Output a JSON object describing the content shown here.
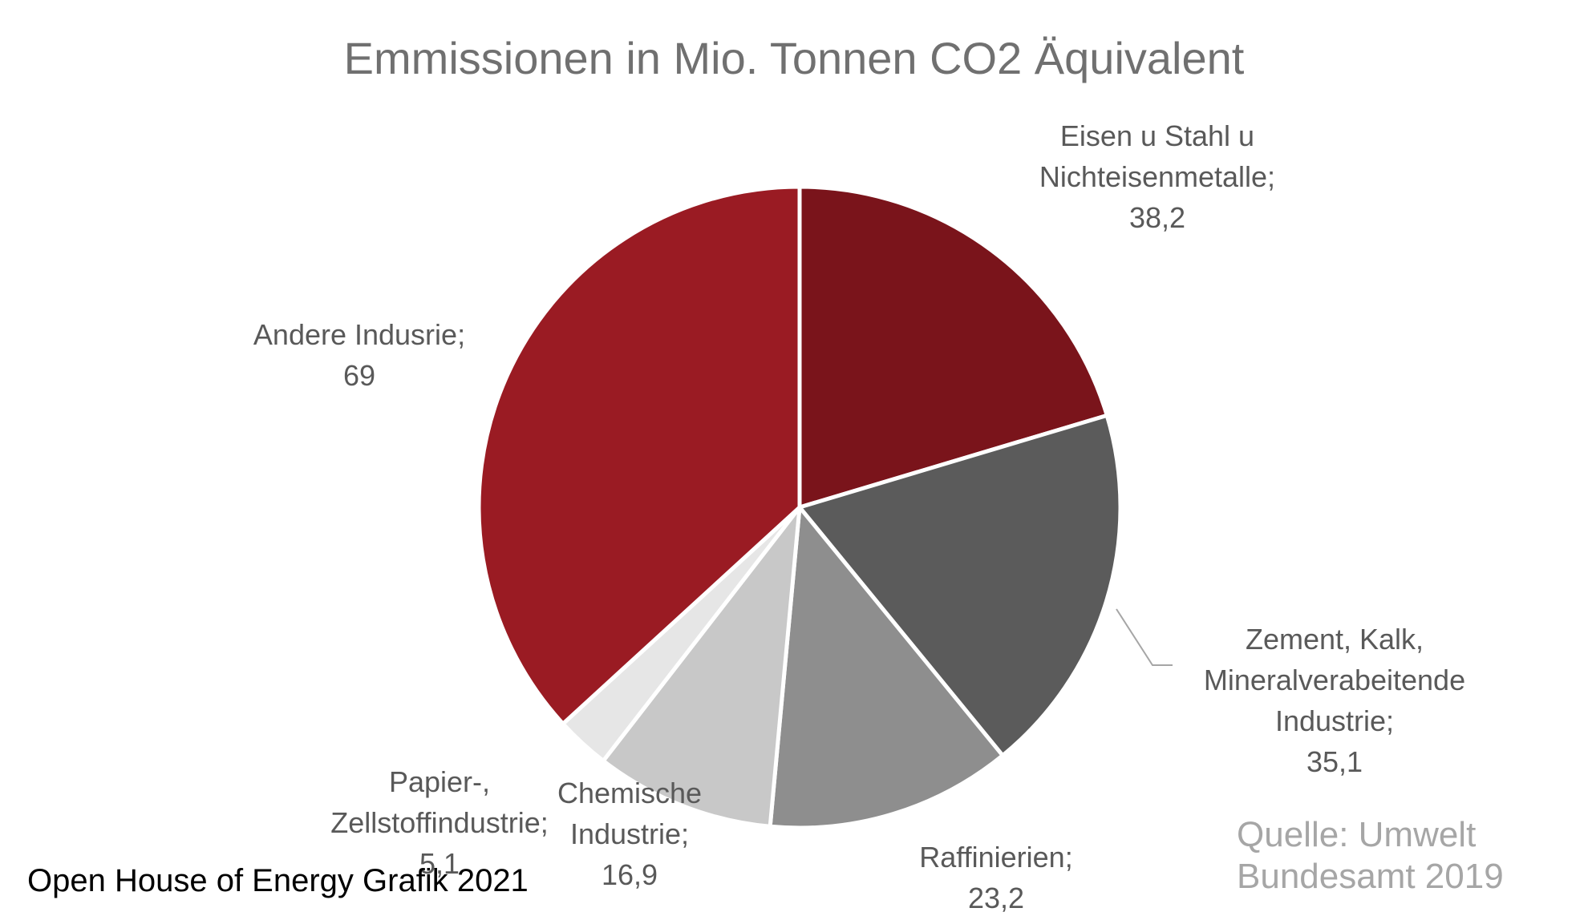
{
  "chart_data": {
    "type": "pie",
    "title": "Emmissionen in Mio. Tonnen CO2 Äquivalent",
    "slices": [
      {
        "label_lines": [
          "Eisen u Stahl u",
          "Nichteisenmetalle;"
        ],
        "value": 38.2,
        "value_text": "38,2",
        "color": "#7a141b"
      },
      {
        "label_lines": [
          "Zement, Kalk,",
          "Mineralverabeitende",
          "Industrie;"
        ],
        "value": 35.1,
        "value_text": "35,1",
        "color": "#5b5b5b"
      },
      {
        "label_lines": [
          "Raffinierien;"
        ],
        "value": 23.2,
        "value_text": "23,2",
        "color": "#8e8e8e"
      },
      {
        "label_lines": [
          "Chemische",
          "Industrie;"
        ],
        "value": 16.9,
        "value_text": "16,9",
        "color": "#c8c8c8"
      },
      {
        "label_lines": [
          "Papier-,",
          "Zellstoffindustrie;"
        ],
        "value": 5.1,
        "value_text": "5,1",
        "color": "#e6e6e6"
      },
      {
        "label_lines": [
          "Andere Indusrie;"
        ],
        "value": 69,
        "value_text": "69",
        "color": "#9a1b23"
      }
    ],
    "start_angle_deg": 0,
    "direction": "clockwise",
    "legend": "none"
  },
  "source_lines": [
    "Quelle: Umwelt",
    "Bundesamt 2019"
  ],
  "footer": "Open House of Energy Grafik 2021"
}
